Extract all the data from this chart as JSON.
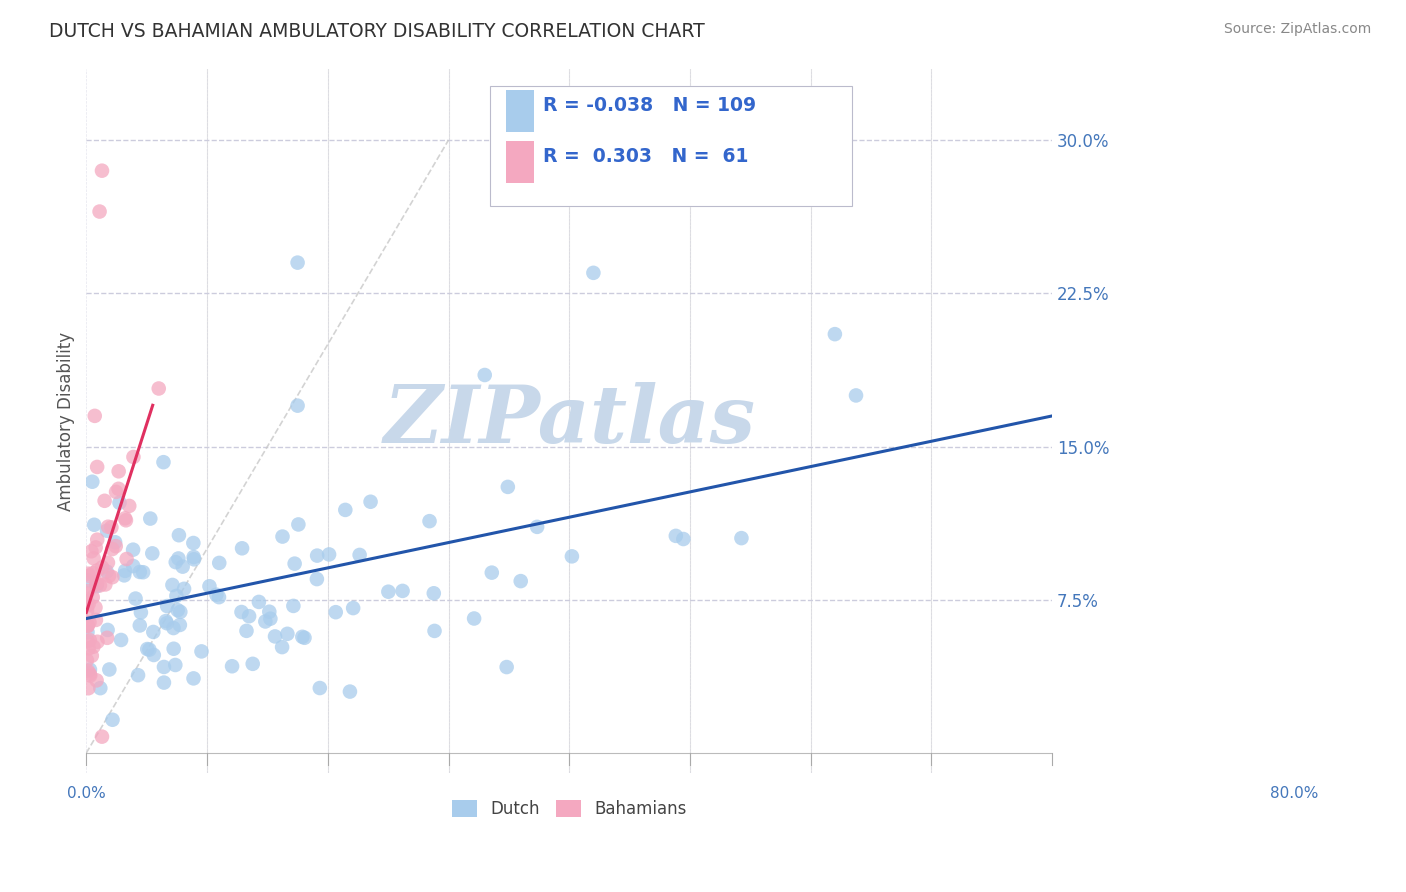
{
  "title": "DUTCH VS BAHAMIAN AMBULATORY DISABILITY CORRELATION CHART",
  "source": "Source: ZipAtlas.com",
  "ylabel": "Ambulatory Disability",
  "xlim": [
    0.0,
    0.8
  ],
  "ylim": [
    -0.02,
    0.335
  ],
  "plot_ylim": [
    0.0,
    0.32
  ],
  "yticks": [
    0.075,
    0.15,
    0.225,
    0.3
  ],
  "ytick_labels": [
    "7.5%",
    "15.0%",
    "22.5%",
    "30.0%"
  ],
  "xtick_labels_only_ends": [
    "0.0%",
    "80.0%"
  ],
  "xticks_minor": [
    0.0,
    0.1,
    0.2,
    0.3,
    0.4,
    0.5,
    0.6,
    0.7,
    0.8
  ],
  "dutch_color": "#A8CCEC",
  "bahamian_color": "#F4A8C0",
  "dutch_line_color": "#2255AA",
  "bahamian_line_color": "#E03060",
  "diagonal_color": "#C8C8C8",
  "dutch_r": -0.038,
  "dutch_n": 109,
  "bahamian_r": 0.303,
  "bahamian_n": 61,
  "watermark_text": "ZIPatlas",
  "watermark_color": "#C8D8EA",
  "background_color": "#FFFFFF",
  "grid_color": "#CCCCDD",
  "title_color": "#333333",
  "axis_label_color": "#555555",
  "tick_label_color": "#4477BB",
  "legend_r_color": "#3366CC",
  "legend_n_color": "#333333",
  "source_color": "#888888"
}
